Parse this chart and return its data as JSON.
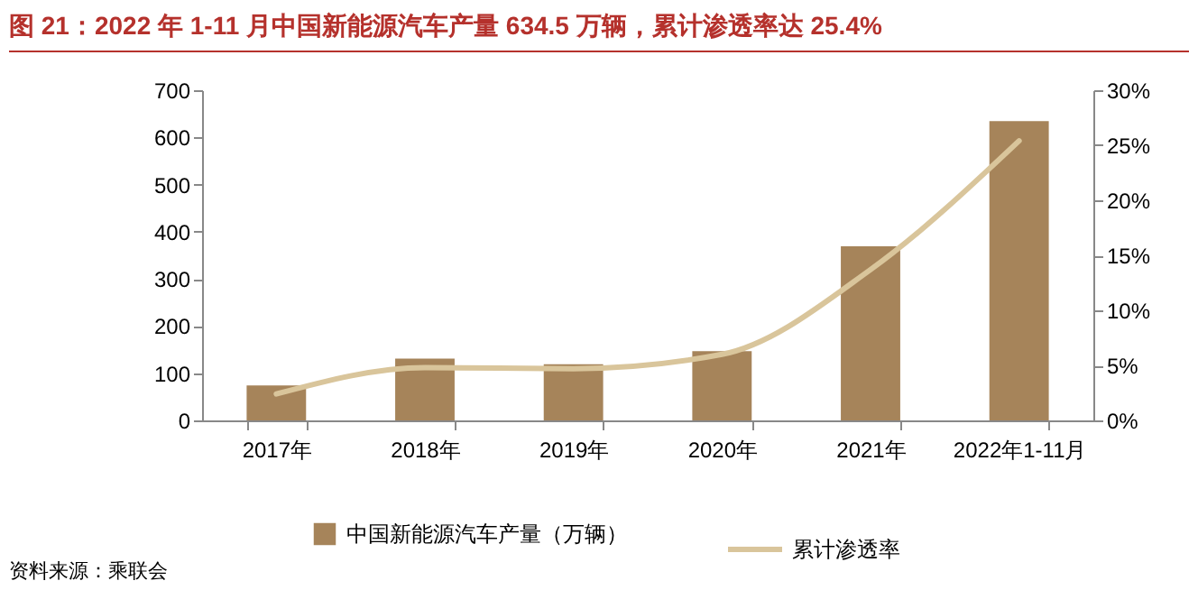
{
  "chart_data": {
    "type": "bar",
    "title": "图 21：2022 年 1-11 月中国新能源汽车产量 634.5 万辆，累计渗透率达 25.4%",
    "categories": [
      "2017年",
      "2018年",
      "2019年",
      "2020年",
      "2021年",
      "2022年1-11月"
    ],
    "series": [
      {
        "name": "中国新能源汽车产量（万辆）",
        "color": "#a6845a",
        "values": [
          74,
          131,
          119,
          147,
          369,
          634.5
        ]
      },
      {
        "name": "累计渗透率",
        "type": "line",
        "axis": "y2",
        "color": "#d9c59b",
        "values": [
          2.4,
          4.8,
          4.7,
          6.0,
          13.7,
          25.4
        ]
      }
    ],
    "ylim": [
      0,
      700
    ],
    "yticks": [
      0,
      100,
      200,
      300,
      400,
      500,
      600,
      700
    ],
    "y2lim": [
      0,
      30
    ],
    "y2ticks": [
      {
        "value": 0,
        "label": "0%"
      },
      {
        "value": 5,
        "label": "5%"
      },
      {
        "value": 10,
        "label": "10%"
      },
      {
        "value": 15,
        "label": "15%"
      },
      {
        "value": 20,
        "label": "20%"
      },
      {
        "value": 25,
        "label": "25%"
      },
      {
        "value": 30,
        "label": "30%"
      }
    ],
    "grid": false,
    "legend": "bottom",
    "line_style": "solid",
    "marker": "none",
    "annotations": [
      "资料来源：乘联会"
    ]
  }
}
